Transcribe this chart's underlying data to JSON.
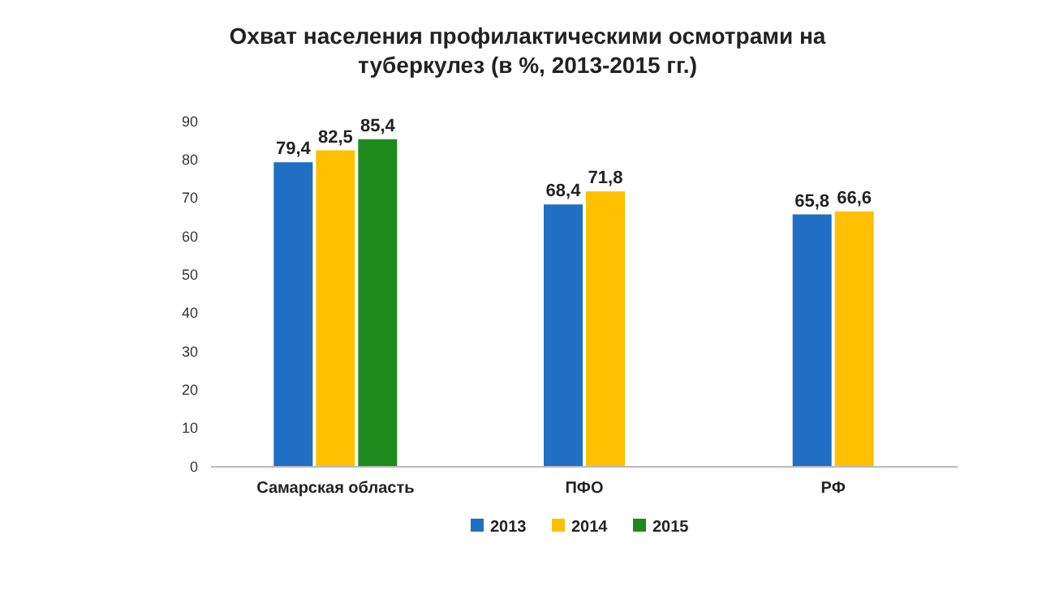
{
  "chart_data": {
    "type": "bar",
    "title": "Охват населения профилактическими осмотрами на туберкулез (в %, 2013-2015 гг.)",
    "categories": [
      "Самарская область",
      "ПФО",
      "РФ"
    ],
    "series": [
      {
        "name": "2013",
        "color": "#1f6fc5",
        "values": [
          79.4,
          68.4,
          65.8
        ],
        "value_labels": [
          "79,4",
          "68,4",
          "65,8"
        ]
      },
      {
        "name": "2014",
        "color": "#ffc000",
        "values": [
          82.5,
          71.8,
          66.6
        ],
        "value_labels": [
          "82,5",
          "71,8",
          "66,6"
        ]
      },
      {
        "name": "2015",
        "color": "#1e8a1e",
        "values": [
          85.4,
          null,
          null
        ],
        "value_labels": [
          "85,4",
          null,
          null
        ]
      }
    ],
    "ylim": [
      0,
      90
    ],
    "yticks": [
      0,
      10,
      20,
      30,
      40,
      50,
      60,
      70,
      80,
      90
    ],
    "grid": false,
    "legend": "bottom"
  }
}
